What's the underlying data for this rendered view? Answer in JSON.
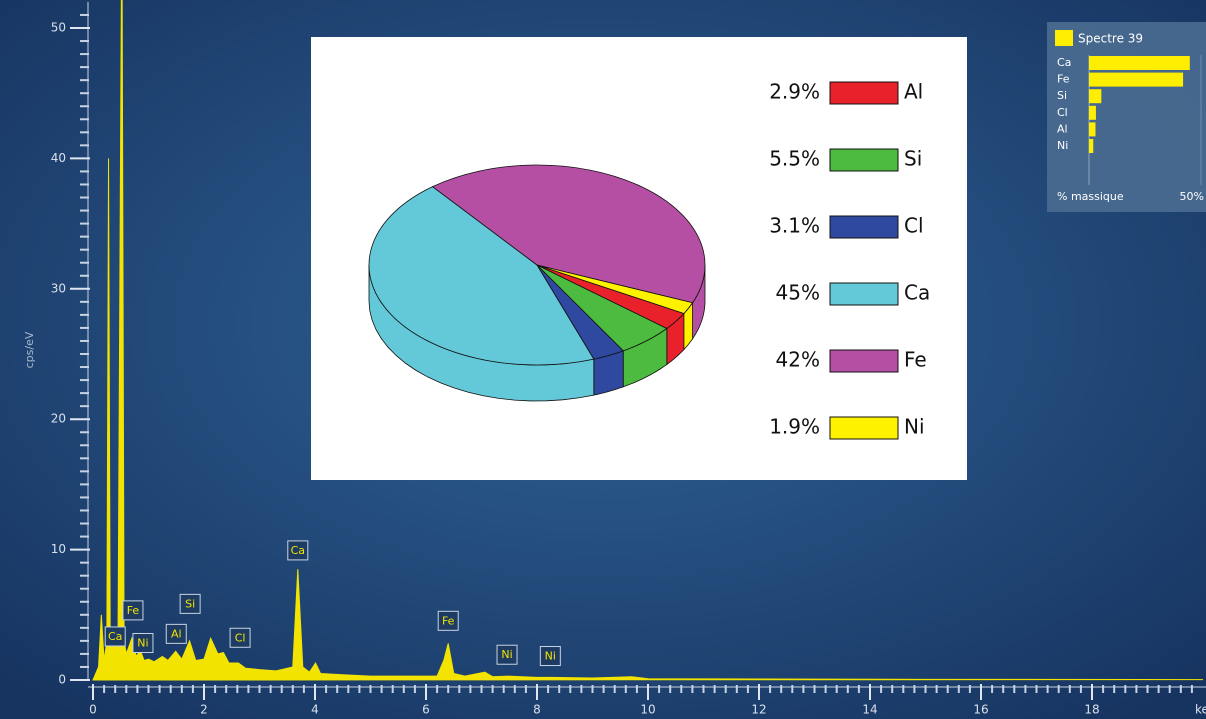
{
  "chart_data": [
    {
      "type": "area",
      "x_label": "keV",
      "y_label": "cps/eV",
      "color": "#f2e400",
      "x": [
        0,
        0.1,
        0.15,
        0.2,
        0.25,
        0.28,
        0.31,
        0.35,
        0.4,
        0.45,
        0.52,
        0.56,
        0.6,
        0.7,
        0.78,
        0.85,
        0.92,
        1.0,
        1.1,
        1.25,
        1.35,
        1.49,
        1.6,
        1.74,
        1.85,
        2.0,
        2.12,
        2.25,
        2.35,
        2.45,
        2.62,
        2.75,
        3.0,
        3.3,
        3.6,
        3.69,
        3.78,
        3.9,
        4.01,
        4.1,
        4.5,
        5.0,
        5.5,
        6.2,
        6.32,
        6.4,
        6.5,
        6.7,
        7.06,
        7.2,
        7.48,
        8.0,
        8.26,
        9.0,
        9.7,
        10,
        12,
        15,
        20
      ],
      "values": [
        0,
        1,
        5,
        1.5,
        3,
        40,
        3,
        4,
        3,
        2.5,
        60,
        3,
        2,
        3.2,
        1.8,
        2.3,
        1.5,
        1.6,
        1.4,
        1.8,
        1.5,
        2.2,
        1.6,
        3,
        1.5,
        1.6,
        3.2,
        2,
        2.1,
        1.3,
        1.3,
        0.9,
        0.8,
        0.7,
        1,
        8.5,
        1,
        0.6,
        1.3,
        0.5,
        0.4,
        0.3,
        0.3,
        0.3,
        1.5,
        2.8,
        0.5,
        0.3,
        0.6,
        0.25,
        0.3,
        0.2,
        0.2,
        0.15,
        0.25,
        0.1,
        0.08,
        0.05,
        0.03
      ],
      "xlim": [
        0,
        20
      ],
      "xticks": [
        0,
        2,
        4,
        6,
        8,
        10,
        12,
        14,
        16,
        18
      ],
      "ylim": [
        0,
        52
      ],
      "yticks": [
        0,
        10,
        20,
        30,
        40,
        50
      ],
      "annotations": [
        {
          "text": "Ca",
          "x": 0.4,
          "y": 3.3
        },
        {
          "text": "Fe",
          "x": 0.72,
          "y": 5.3
        },
        {
          "text": "Ni",
          "x": 0.9,
          "y": 2.8
        },
        {
          "text": "Al",
          "x": 1.5,
          "y": 3.5
        },
        {
          "text": "Si",
          "x": 1.75,
          "y": 5.8
        },
        {
          "text": "Cl",
          "x": 2.65,
          "y": 3.2
        },
        {
          "text": "Ca",
          "x": 3.69,
          "y": 9.9
        },
        {
          "text": "Fe",
          "x": 6.4,
          "y": 4.5
        },
        {
          "text": "Ni",
          "x": 7.46,
          "y": 1.9
        },
        {
          "text": "Ni",
          "x": 8.24,
          "y": 1.8
        }
      ]
    },
    {
      "type": "pie",
      "categories": [
        "Al",
        "Si",
        "Cl",
        "Ca",
        "Fe",
        "Ni"
      ],
      "values": [
        2.9,
        5.5,
        3.1,
        45,
        42,
        1.9
      ],
      "value_labels": [
        "2.9%",
        "5.5%",
        "3.1%",
        "45%",
        "42%",
        "1.9%"
      ],
      "colors": [
        "#e8212a",
        "#4cbb3f",
        "#2f49a0",
        "#63c8d8",
        "#b54fa4",
        "#fff200"
      ]
    },
    {
      "type": "bar",
      "title": "Spectre 39",
      "x_label": "% massique",
      "color": "#ffee00",
      "categories": [
        "Ca",
        "Fe",
        "Si",
        "Cl",
        "Al",
        "Ni"
      ],
      "values": [
        45,
        42,
        5.5,
        3.1,
        2.9,
        1.9
      ],
      "xlim": [
        0,
        50
      ],
      "xticks": [
        {
          "value": 50,
          "label": "50%"
        }
      ]
    }
  ]
}
